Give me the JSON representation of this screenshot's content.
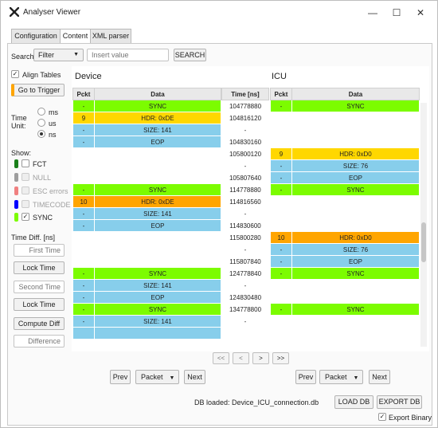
{
  "window": {
    "title": "Analyser Viewer",
    "minimize": "—",
    "maximize": "☐",
    "close": "✕"
  },
  "tabs": [
    {
      "label": "Configuration"
    },
    {
      "label": "Content"
    },
    {
      "label": "XML parser"
    }
  ],
  "search": {
    "label": "Search:",
    "filter_value": "Filter",
    "placeholder": "Insert value",
    "button": "SEARCH"
  },
  "left": {
    "align_tables": "Align Tables",
    "go_to_trigger": "Go to Trigger",
    "time_unit_label_1": "Time",
    "time_unit_label_2": "Unit:",
    "units": [
      "ms",
      "us",
      "ns"
    ],
    "show_label": "Show:",
    "show_items": [
      {
        "label": "FCT",
        "color": "#1a7f1a",
        "checked": false
      },
      {
        "label": "NULL",
        "color": "#9e9e9e",
        "checked": false
      },
      {
        "label": "ESC errors",
        "color": "#f08080",
        "checked": false
      },
      {
        "label": "TIMECODE",
        "color": "#0000ff",
        "checked": false
      },
      {
        "label": "SYNC",
        "color": "#7cfc00",
        "checked": true
      }
    ],
    "time_diff_label": "Time Diff. [ns]",
    "first_time_placeholder": "First Time",
    "lock_time_1": "Lock Time",
    "second_time_placeholder": "Second Time",
    "lock_time_2": "Lock Time",
    "compute_diff": "Compute Diff",
    "difference_placeholder": "Difference"
  },
  "device": {
    "title": "Device",
    "headers": [
      "Pckt",
      "Data"
    ],
    "rows": [
      {
        "pckt": "-",
        "data": "SYNC",
        "type": "sync"
      },
      {
        "pckt": "9",
        "data": "HDR: 0xDE",
        "type": "hdr-y"
      },
      {
        "pckt": "-",
        "data": "SIZE: 141",
        "type": "blue"
      },
      {
        "pckt": "-",
        "data": "EOP",
        "type": "blue"
      },
      {
        "pckt": "",
        "data": "",
        "type": "empty"
      },
      {
        "pckt": "",
        "data": "",
        "type": "empty"
      },
      {
        "pckt": "",
        "data": "",
        "type": "empty"
      },
      {
        "pckt": "-",
        "data": "SYNC",
        "type": "sync"
      },
      {
        "pckt": "10",
        "data": "HDR: 0xDE",
        "type": "hdr-o"
      },
      {
        "pckt": "-",
        "data": "SIZE: 141",
        "type": "blue"
      },
      {
        "pckt": "-",
        "data": "EOP",
        "type": "blue"
      },
      {
        "pckt": "",
        "data": "",
        "type": "empty"
      },
      {
        "pckt": "",
        "data": "",
        "type": "empty"
      },
      {
        "pckt": "",
        "data": "",
        "type": "empty"
      },
      {
        "pckt": "-",
        "data": "SYNC",
        "type": "sync"
      },
      {
        "pckt": "-",
        "data": "SIZE: 141",
        "type": "blue"
      },
      {
        "pckt": "-",
        "data": "EOP",
        "type": "blue"
      },
      {
        "pckt": "-",
        "data": "SYNC",
        "type": "sync"
      },
      {
        "pckt": "-",
        "data": "SIZE: 141",
        "type": "blue"
      },
      {
        "pckt": "",
        "data": "",
        "type": "blue"
      }
    ]
  },
  "time": {
    "header": "Time [ns]",
    "rows": [
      "104778880",
      "104816120",
      "-",
      "104830160",
      "105800120",
      "-",
      "105807640",
      "114778880",
      "114816560",
      "-",
      "114830600",
      "115800280",
      "-",
      "115807840",
      "124778840",
      "-",
      "124830480",
      "134778800",
      "-",
      ""
    ]
  },
  "icu": {
    "title": "ICU",
    "headers": [
      "Pckt",
      "Data"
    ],
    "rows": [
      {
        "pckt": "-",
        "data": "SYNC",
        "type": "sync"
      },
      {
        "pckt": "",
        "data": "",
        "type": "empty"
      },
      {
        "pckt": "",
        "data": "",
        "type": "empty"
      },
      {
        "pckt": "",
        "data": "",
        "type": "empty"
      },
      {
        "pckt": "9",
        "data": "HDR: 0xD0",
        "type": "hdr-y"
      },
      {
        "pckt": "-",
        "data": "SIZE: 76",
        "type": "blue"
      },
      {
        "pckt": "-",
        "data": "EOP",
        "type": "blue"
      },
      {
        "pckt": "-",
        "data": "SYNC",
        "type": "sync"
      },
      {
        "pckt": "",
        "data": "",
        "type": "empty"
      },
      {
        "pckt": "",
        "data": "",
        "type": "empty"
      },
      {
        "pckt": "",
        "data": "",
        "type": "empty"
      },
      {
        "pckt": "10",
        "data": "HDR: 0xD0",
        "type": "hdr-o"
      },
      {
        "pckt": "-",
        "data": "SIZE: 76",
        "type": "blue"
      },
      {
        "pckt": "-",
        "data": "EOP",
        "type": "blue"
      },
      {
        "pckt": "-",
        "data": "SYNC",
        "type": "sync"
      },
      {
        "pckt": "",
        "data": "",
        "type": "empty"
      },
      {
        "pckt": "",
        "data": "",
        "type": "empty"
      },
      {
        "pckt": "-",
        "data": "SYNC",
        "type": "sync"
      },
      {
        "pckt": "",
        "data": "",
        "type": "empty"
      },
      {
        "pckt": "",
        "data": "",
        "type": "empty"
      }
    ]
  },
  "pager": {
    "first": "<<",
    "prev": "<",
    "next": ">",
    "last": ">>"
  },
  "nav_device": {
    "prev": "Prev",
    "packet": "Packet",
    "next": "Next"
  },
  "nav_icu": {
    "prev": "Prev",
    "packet": "Packet",
    "next": "Next"
  },
  "footer": {
    "db_loaded": "DB loaded: Device_ICU_connection.db",
    "load_db": "LOAD DB",
    "export_db": "EXPORT DB",
    "export_binary": "Export Binary"
  }
}
